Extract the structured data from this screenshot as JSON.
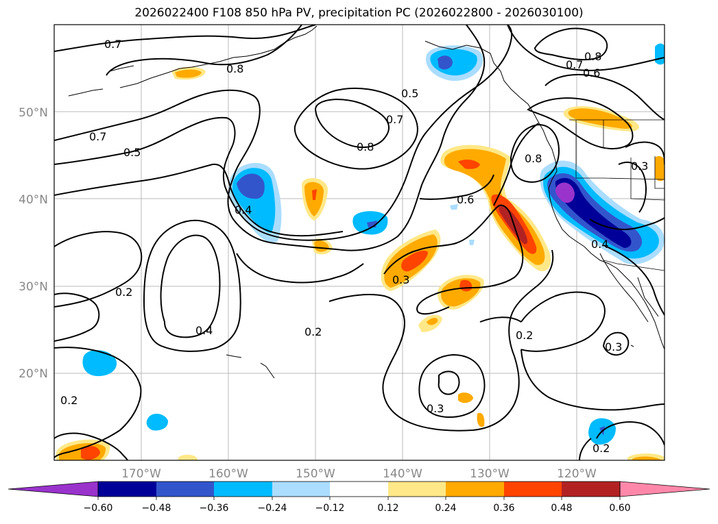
{
  "title": "2026022400 F108 850 hPa PV, precipitation PC (2026022800 - 2026030100)",
  "map": {
    "lat_labels": [
      "50°N",
      "40°N",
      "30°N",
      "20°N"
    ],
    "lon_labels": [
      "170°W",
      "160°W",
      "150°W",
      "140°W",
      "130°W",
      "120°W"
    ],
    "contour_labels": [
      "0.7",
      "0.8",
      "0.5",
      "0.7",
      "0.8",
      "0.8",
      "0.7",
      "0.6",
      "0.7",
      "0.5",
      "0.8",
      "0.6",
      "0.4",
      "0.3",
      "0.3",
      "0.2",
      "0.4",
      "0.2",
      "0.2",
      "0.3",
      "0.3",
      "0.2",
      "0.4",
      "0.2"
    ]
  },
  "colorbar": {
    "colors": [
      "#9933cc",
      "#000099",
      "#3355cc",
      "#00bbff",
      "#aaddff",
      "#ffffff",
      "#ffe888",
      "#ffaa00",
      "#ff4400",
      "#b22222",
      "#ff88aa"
    ],
    "tick_labels": [
      "−0.60",
      "−0.48",
      "−0.36",
      "−0.24",
      "−0.12",
      "0.12",
      "0.24",
      "0.36",
      "0.48",
      "0.60"
    ]
  }
}
